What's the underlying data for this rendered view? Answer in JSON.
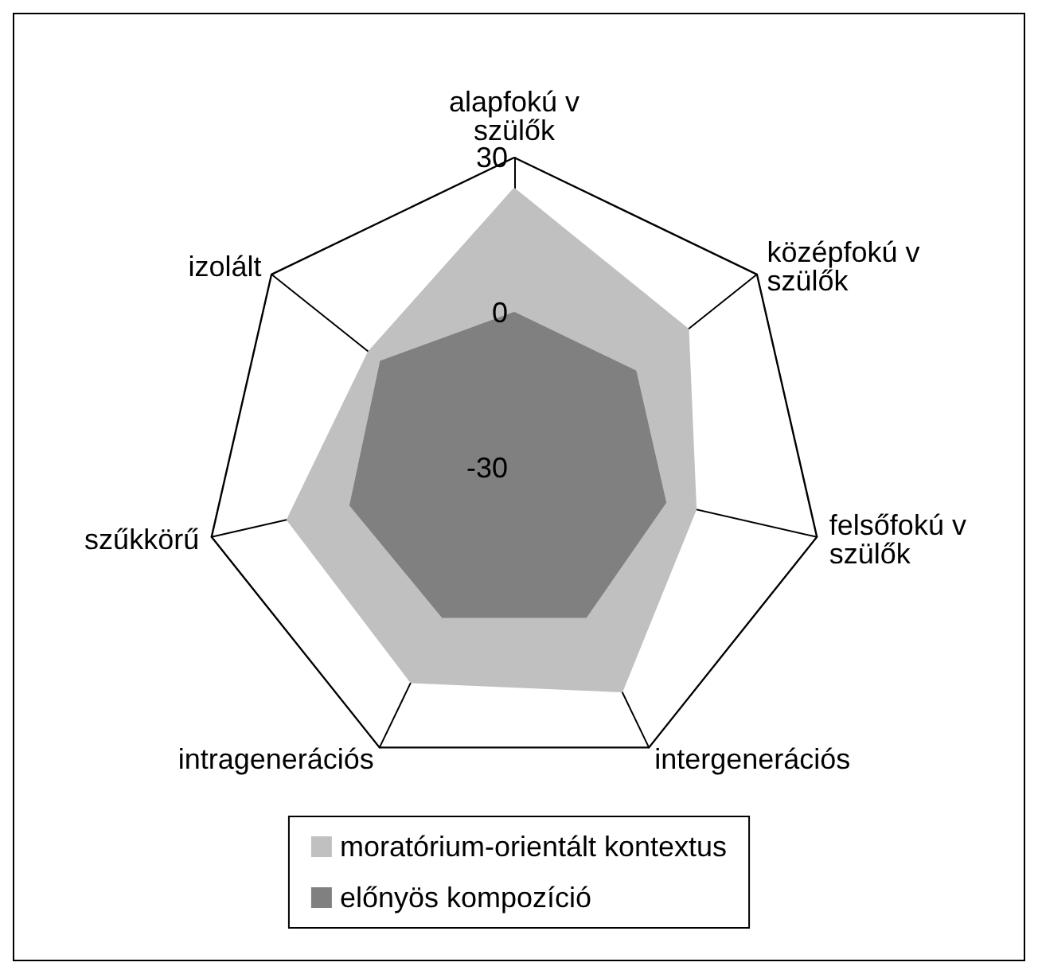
{
  "chart_data": {
    "type": "radar",
    "categories": [
      "alapfokú v szülők",
      "középfokú v szülők",
      "felsőfokú v szülők",
      "intergenerációs",
      "intragenerációs",
      "szűkkörű",
      "izolált"
    ],
    "ylim": [
      -30,
      30
    ],
    "yticks": [
      -30,
      0,
      30
    ],
    "legend": "bottom",
    "marker": "none",
    "series": [
      {
        "name": "moratórium-orientált kontextus",
        "color": "#c0c0c0",
        "values": [
          24,
          13,
          6,
          18,
          16,
          15,
          6
        ]
      },
      {
        "name": "előnyös kompozíció",
        "color": "#808080",
        "values": [
          0,
          0,
          0,
          2,
          2,
          2.5,
          3
        ]
      }
    ]
  }
}
